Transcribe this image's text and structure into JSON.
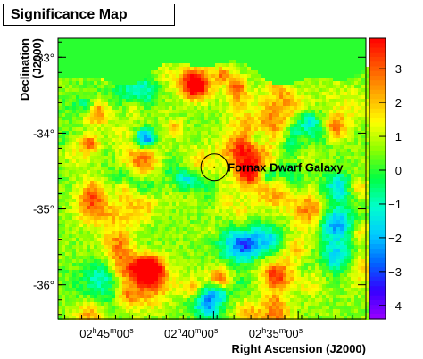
{
  "chart_data": {
    "type": "heatmap",
    "title": "Significance Map",
    "xlabel": "Right Ascension (J2000)",
    "ylabel": "Declination (J2000)",
    "ra_ticks": [
      {
        "h": "02",
        "m": "45",
        "s": "00",
        "ra_deg": 41.25
      },
      {
        "h": "02",
        "m": "40",
        "s": "00",
        "ra_deg": 40.0
      },
      {
        "h": "02",
        "m": "35",
        "s": "00",
        "ra_deg": 38.75
      }
    ],
    "dec_ticks": [
      {
        "label": "-33°",
        "dec": -33
      },
      {
        "label": "-34°",
        "dec": -34
      },
      {
        "label": "-35°",
        "dec": -35
      },
      {
        "label": "-36°",
        "dec": -36
      }
    ],
    "colorbar": {
      "min": -4.4,
      "max": 3.9,
      "ticks": [
        3,
        2,
        1,
        0,
        -1,
        -2,
        -3,
        -4
      ],
      "tick_labels": [
        "3",
        "2",
        "1",
        "0",
        "−1",
        "−2",
        "−3",
        "−4"
      ]
    },
    "annotation": {
      "label": "Fornax Dwarf Galaxy",
      "ra_deg": 39.99,
      "dec": -34.45
    },
    "background_value": 0,
    "colors": {
      "scale": [
        "#9900ff",
        "#3300ff",
        "#0066ff",
        "#00ccff",
        "#00ffcc",
        "#00ff44",
        "#88ff00",
        "#ffff00",
        "#ffaa00",
        "#ff5500",
        "#ff0000"
      ]
    }
  }
}
